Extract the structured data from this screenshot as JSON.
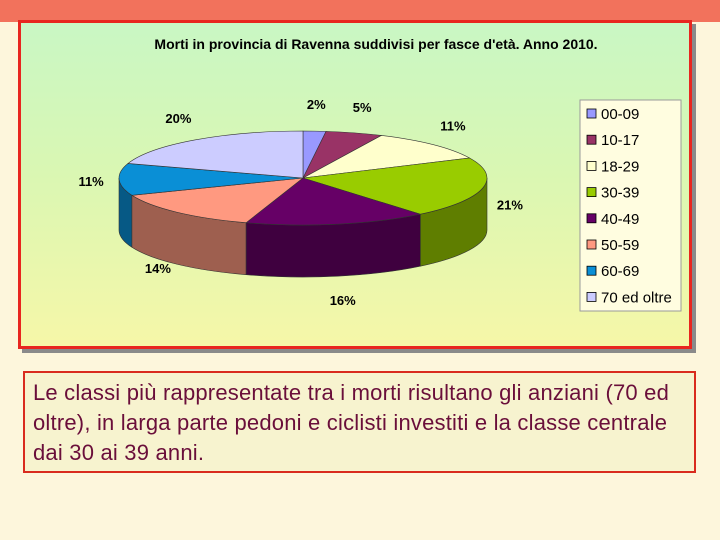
{
  "colors": {
    "header_bar": "#f2725c",
    "frame_border": "#e8261f",
    "caption_text": "#6a0e3a",
    "slices": [
      "#9999ff",
      "#993366",
      "#ffffcc",
      "#99cc00",
      "#660066",
      "#ff9980",
      "#0a8fd6",
      "#ccccff"
    ]
  },
  "chart_data": {
    "type": "pie",
    "title": "Morti in provincia di Ravenna suddivisi per fasce d'età. Anno 2010.",
    "categories": [
      "00-09",
      "10-17",
      "18-29",
      "30-39",
      "40-49",
      "50-59",
      "60-69",
      "70 ed oltre"
    ],
    "values": [
      2,
      5,
      11,
      21,
      16,
      14,
      11,
      20
    ],
    "data_labels": [
      "2%",
      "5%",
      "11%",
      "21%",
      "16%",
      "14%",
      "11%",
      "20%"
    ],
    "legend_position": "right",
    "style": "3d"
  },
  "caption": "Le classi più rappresentate tra i morti risultano gli anziani (70 ed oltre), in larga parte pedoni e ciclisti investiti e la classe centrale dai 30 ai 39 anni."
}
